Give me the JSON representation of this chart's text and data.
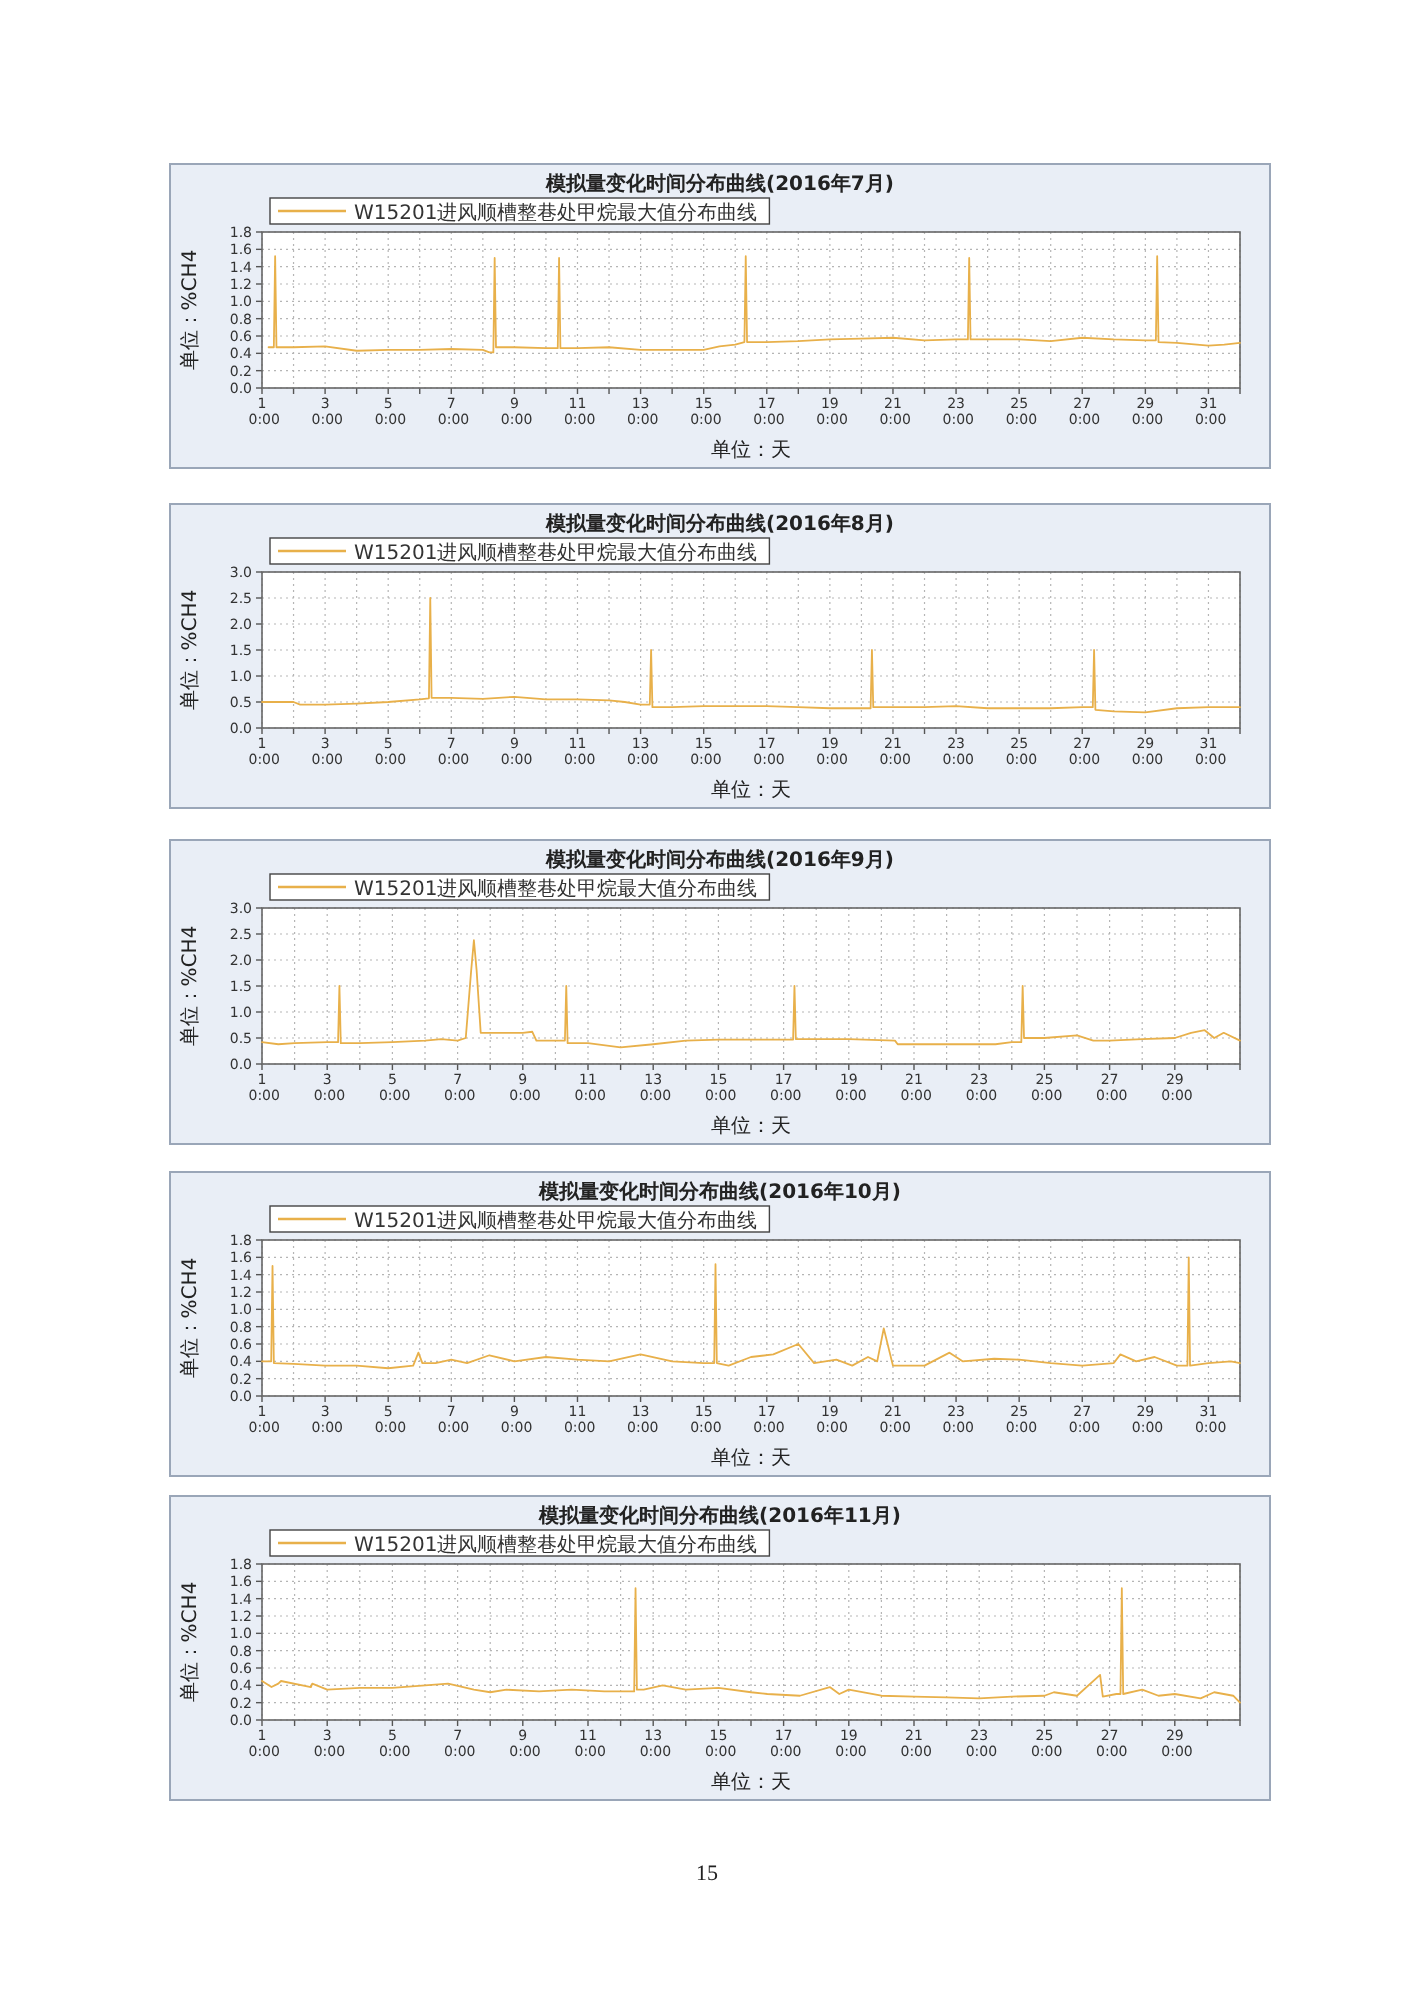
{
  "chart_data": [
    {
      "type": "line",
      "title": "模拟量变化时间分布曲线(2016年7月)",
      "xlabel": "单位：天",
      "ylabel": "单位：%CH4",
      "grid": true,
      "legend": "top",
      "marker": "none",
      "line_style": "solid",
      "xlim": [
        "2016-07-01T00:00",
        "2016-08-01T00:00"
      ],
      "ylim": [
        0,
        1.8
      ],
      "xticks": [
        {
          "value": "2016-07-01T00:00",
          "label": "1 0:00"
        },
        {
          "value": "2016-07-02T00:00",
          "label": null
        },
        {
          "value": "2016-07-03T00:00",
          "label": "3 0:00"
        },
        {
          "value": "2016-07-04T00:00",
          "label": null
        },
        {
          "value": "2016-07-05T00:00",
          "label": "5 0:00"
        },
        {
          "value": "2016-07-06T00:00",
          "label": null
        },
        {
          "value": "2016-07-07T00:00",
          "label": "7 0:00"
        },
        {
          "value": "2016-07-08T00:00",
          "label": null
        },
        {
          "value": "2016-07-09T00:00",
          "label": "9 0:00"
        },
        {
          "value": "2016-07-10T00:00",
          "label": null
        },
        {
          "value": "2016-07-11T00:00",
          "label": "11 0:00"
        },
        {
          "value": "2016-07-12T00:00",
          "label": null
        },
        {
          "value": "2016-07-13T00:00",
          "label": "13 0:00"
        },
        {
          "value": "2016-07-14T00:00",
          "label": null
        },
        {
          "value": "2016-07-15T00:00",
          "label": "15 0:00"
        },
        {
          "value": "2016-07-16T00:00",
          "label": null
        },
        {
          "value": "2016-07-17T00:00",
          "label": "17 0:00"
        },
        {
          "value": "2016-07-18T00:00",
          "label": null
        },
        {
          "value": "2016-07-19T00:00",
          "label": "19 0:00"
        },
        {
          "value": "2016-07-20T00:00",
          "label": null
        },
        {
          "value": "2016-07-21T00:00",
          "label": "21 0:00"
        },
        {
          "value": "2016-07-22T00:00",
          "label": null
        },
        {
          "value": "2016-07-23T00:00",
          "label": "23 0:00"
        },
        {
          "value": "2016-07-24T00:00",
          "label": null
        },
        {
          "value": "2016-07-25T00:00",
          "label": "25 0:00"
        },
        {
          "value": "2016-07-26T00:00",
          "label": null
        },
        {
          "value": "2016-07-27T00:00",
          "label": "27 0:00"
        },
        {
          "value": "2016-07-28T00:00",
          "label": null
        },
        {
          "value": "2016-07-29T00:00",
          "label": "29 0:00"
        },
        {
          "value": "2016-07-30T00:00",
          "label": null
        },
        {
          "value": "2016-07-31T00:00",
          "label": "31 0:00"
        },
        {
          "value": "2016-08-01T00:00",
          "label": null
        }
      ],
      "yticks": [
        {
          "value": 0,
          "label": "0.0"
        },
        {
          "value": 0.2,
          "label": "0.2"
        },
        {
          "value": 0.4,
          "label": "0.4"
        },
        {
          "value": 0.6,
          "label": "0.6"
        },
        {
          "value": 0.8,
          "label": "0.8"
        },
        {
          "value": 1,
          "label": "1.0"
        },
        {
          "value": 1.2,
          "label": "1.2"
        },
        {
          "value": 1.4,
          "label": "1.4"
        },
        {
          "value": 1.6,
          "label": "1.6"
        },
        {
          "value": 1.8,
          "label": "1.8"
        }
      ],
      "series": [
        {
          "name": "W15201进风顺槽整巷处甲烷最大值分布曲线",
          "color": "#e8b04a",
          "x": [
            "2016-07-01T05:00",
            "2016-07-01T09:00",
            "2016-07-01T10:00",
            "2016-07-01T11:00",
            "2016-07-02T00:00",
            "2016-07-03T00:00",
            "2016-07-04T00:00",
            "2016-07-05T00:00",
            "2016-07-06T00:00",
            "2016-07-07T00:00",
            "2016-07-08T00:00",
            "2016-07-08T05:00",
            "2016-07-08T08:00",
            "2016-07-08T09:00",
            "2016-07-08T10:00",
            "2016-07-09T00:00",
            "2016-07-10T00:00",
            "2016-07-10T09:00",
            "2016-07-10T10:00",
            "2016-07-10T11:00",
            "2016-07-11T00:00",
            "2016-07-12T00:00",
            "2016-07-13T00:00",
            "2016-07-14T00:00",
            "2016-07-15T00:00",
            "2016-07-15T12:00",
            "2016-07-16T00:00",
            "2016-07-16T07:00",
            "2016-07-16T08:00",
            "2016-07-16T09:00",
            "2016-07-17T00:00",
            "2016-07-18T00:00",
            "2016-07-19T00:00",
            "2016-07-20T00:00",
            "2016-07-21T00:00",
            "2016-07-22T00:00",
            "2016-07-23T00:00",
            "2016-07-23T09:00",
            "2016-07-23T10:00",
            "2016-07-23T11:00",
            "2016-07-24T00:00",
            "2016-07-25T00:00",
            "2016-07-26T00:00",
            "2016-07-27T00:00",
            "2016-07-28T00:00",
            "2016-07-29T00:00",
            "2016-07-29T08:00",
            "2016-07-29T09:00",
            "2016-07-29T10:00",
            "2016-07-30T00:00",
            "2016-07-31T00:00",
            "2016-07-31T12:00",
            "2016-08-01T00:00"
          ],
          "values": [
            0.47,
            0.47,
            1.52,
            0.47,
            0.47,
            0.48,
            0.43,
            0.44,
            0.44,
            0.45,
            0.44,
            0.41,
            0.41,
            1.5,
            0.47,
            0.47,
            0.46,
            0.46,
            1.5,
            0.46,
            0.46,
            0.47,
            0.44,
            0.44,
            0.44,
            0.48,
            0.5,
            0.53,
            1.52,
            0.53,
            0.53,
            0.54,
            0.56,
            0.57,
            0.58,
            0.55,
            0.56,
            0.56,
            1.5,
            0.56,
            0.56,
            0.56,
            0.54,
            0.58,
            0.56,
            0.55,
            0.55,
            1.52,
            0.53,
            0.52,
            0.49,
            0.5,
            0.52
          ]
        }
      ]
    },
    {
      "type": "line",
      "title": "模拟量变化时间分布曲线(2016年8月)",
      "xlabel": "单位：天",
      "ylabel": "单位：%CH4",
      "grid": true,
      "legend": "top",
      "marker": "none",
      "line_style": "solid",
      "xlim": [
        "2016-08-01T00:00",
        "2016-09-01T00:00"
      ],
      "ylim": [
        0,
        3
      ],
      "xticks": [
        {
          "value": "2016-08-01T00:00",
          "label": "1 0:00"
        },
        {
          "value": "2016-08-02T00:00",
          "label": null
        },
        {
          "value": "2016-08-03T00:00",
          "label": "3 0:00"
        },
        {
          "value": "2016-08-04T00:00",
          "label": null
        },
        {
          "value": "2016-08-05T00:00",
          "label": "5 0:00"
        },
        {
          "value": "2016-08-06T00:00",
          "label": null
        },
        {
          "value": "2016-08-07T00:00",
          "label": "7 0:00"
        },
        {
          "value": "2016-08-08T00:00",
          "label": null
        },
        {
          "value": "2016-08-09T00:00",
          "label": "9 0:00"
        },
        {
          "value": "2016-08-10T00:00",
          "label": null
        },
        {
          "value": "2016-08-11T00:00",
          "label": "11 0:00"
        },
        {
          "value": "2016-08-12T00:00",
          "label": null
        },
        {
          "value": "2016-08-13T00:00",
          "label": "13 0:00"
        },
        {
          "value": "2016-08-14T00:00",
          "label": null
        },
        {
          "value": "2016-08-15T00:00",
          "label": "15 0:00"
        },
        {
          "value": "2016-08-16T00:00",
          "label": null
        },
        {
          "value": "2016-08-17T00:00",
          "label": "17 0:00"
        },
        {
          "value": "2016-08-18T00:00",
          "label": null
        },
        {
          "value": "2016-08-19T00:00",
          "label": "19 0:00"
        },
        {
          "value": "2016-08-20T00:00",
          "label": null
        },
        {
          "value": "2016-08-21T00:00",
          "label": "21 0:00"
        },
        {
          "value": "2016-08-22T00:00",
          "label": null
        },
        {
          "value": "2016-08-23T00:00",
          "label": "23 0:00"
        },
        {
          "value": "2016-08-24T00:00",
          "label": null
        },
        {
          "value": "2016-08-25T00:00",
          "label": "25 0:00"
        },
        {
          "value": "2016-08-26T00:00",
          "label": null
        },
        {
          "value": "2016-08-27T00:00",
          "label": "27 0:00"
        },
        {
          "value": "2016-08-28T00:00",
          "label": null
        },
        {
          "value": "2016-08-29T00:00",
          "label": "29 0:00"
        },
        {
          "value": "2016-08-30T00:00",
          "label": null
        },
        {
          "value": "2016-08-31T00:00",
          "label": "31 0:00"
        },
        {
          "value": "2016-09-01T00:00",
          "label": null
        }
      ],
      "yticks": [
        {
          "value": 0,
          "label": "0.0"
        },
        {
          "value": 0.5,
          "label": "0.5"
        },
        {
          "value": 1,
          "label": "1.0"
        },
        {
          "value": 1.5,
          "label": "1.5"
        },
        {
          "value": 2,
          "label": "2.0"
        },
        {
          "value": 2.5,
          "label": "2.5"
        },
        {
          "value": 3,
          "label": "3.0"
        }
      ],
      "series": [
        {
          "name": "W15201进风顺槽整巷处甲烷最大值分布曲线",
          "color": "#e8b04a",
          "x": [
            "2016-08-01T00:00",
            "2016-08-02T00:00",
            "2016-08-02T05:00",
            "2016-08-03T00:00",
            "2016-08-04T00:00",
            "2016-08-05T00:00",
            "2016-08-06T00:00",
            "2016-08-06T07:00",
            "2016-08-06T08:00",
            "2016-08-06T09:00",
            "2016-08-07T00:00",
            "2016-08-08T00:00",
            "2016-08-08T12:00",
            "2016-08-09T00:00",
            "2016-08-10T00:00",
            "2016-08-11T00:00",
            "2016-08-12T00:00",
            "2016-08-12T12:00",
            "2016-08-13T00:00",
            "2016-08-13T07:00",
            "2016-08-13T08:00",
            "2016-08-13T09:00",
            "2016-08-14T00:00",
            "2016-08-15T00:00",
            "2016-08-16T00:00",
            "2016-08-17T00:00",
            "2016-08-18T00:00",
            "2016-08-19T00:00",
            "2016-08-20T00:00",
            "2016-08-20T07:00",
            "2016-08-20T08:00",
            "2016-08-20T09:00",
            "2016-08-21T00:00",
            "2016-08-22T00:00",
            "2016-08-23T00:00",
            "2016-08-24T00:00",
            "2016-08-25T00:00",
            "2016-08-26T00:00",
            "2016-08-27T00:00",
            "2016-08-27T08:00",
            "2016-08-27T09:00",
            "2016-08-27T10:00",
            "2016-08-28T00:00",
            "2016-08-29T00:00",
            "2016-08-30T00:00",
            "2016-08-31T00:00",
            "2016-09-01T00:00"
          ],
          "values": [
            0.5,
            0.5,
            0.45,
            0.45,
            0.47,
            0.5,
            0.55,
            0.57,
            2.5,
            0.58,
            0.58,
            0.56,
            0.58,
            0.6,
            0.55,
            0.55,
            0.53,
            0.5,
            0.45,
            0.45,
            1.5,
            0.4,
            0.4,
            0.42,
            0.42,
            0.42,
            0.4,
            0.38,
            0.38,
            0.38,
            1.5,
            0.4,
            0.4,
            0.4,
            0.42,
            0.38,
            0.38,
            0.38,
            0.4,
            0.4,
            1.5,
            0.35,
            0.32,
            0.3,
            0.38,
            0.4,
            0.4
          ]
        }
      ]
    },
    {
      "type": "line",
      "title": "模拟量变化时间分布曲线(2016年9月)",
      "xlabel": "单位：天",
      "ylabel": "单位：%CH4",
      "grid": true,
      "legend": "top",
      "marker": "none",
      "line_style": "solid",
      "xlim": [
        "2016-09-01T00:00",
        "2016-10-01T00:00"
      ],
      "ylim": [
        0,
        3
      ],
      "xticks": [
        {
          "value": "2016-09-01T00:00",
          "label": "1 0:00"
        },
        {
          "value": "2016-09-02T00:00",
          "label": null
        },
        {
          "value": "2016-09-03T00:00",
          "label": "3 0:00"
        },
        {
          "value": "2016-09-04T00:00",
          "label": null
        },
        {
          "value": "2016-09-05T00:00",
          "label": "5 0:00"
        },
        {
          "value": "2016-09-06T00:00",
          "label": null
        },
        {
          "value": "2016-09-07T00:00",
          "label": "7 0:00"
        },
        {
          "value": "2016-09-08T00:00",
          "label": null
        },
        {
          "value": "2016-09-09T00:00",
          "label": "9 0:00"
        },
        {
          "value": "2016-09-10T00:00",
          "label": null
        },
        {
          "value": "2016-09-11T00:00",
          "label": "11 0:00"
        },
        {
          "value": "2016-09-12T00:00",
          "label": null
        },
        {
          "value": "2016-09-13T00:00",
          "label": "13 0:00"
        },
        {
          "value": "2016-09-14T00:00",
          "label": null
        },
        {
          "value": "2016-09-15T00:00",
          "label": "15 0:00"
        },
        {
          "value": "2016-09-16T00:00",
          "label": null
        },
        {
          "value": "2016-09-17T00:00",
          "label": "17 0:00"
        },
        {
          "value": "2016-09-18T00:00",
          "label": null
        },
        {
          "value": "2016-09-19T00:00",
          "label": "19 0:00"
        },
        {
          "value": "2016-09-20T00:00",
          "label": null
        },
        {
          "value": "2016-09-21T00:00",
          "label": "21 0:00"
        },
        {
          "value": "2016-09-22T00:00",
          "label": null
        },
        {
          "value": "2016-09-23T00:00",
          "label": "23 0:00"
        },
        {
          "value": "2016-09-24T00:00",
          "label": null
        },
        {
          "value": "2016-09-25T00:00",
          "label": "25 0:00"
        },
        {
          "value": "2016-09-26T00:00",
          "label": null
        },
        {
          "value": "2016-09-27T00:00",
          "label": "27 0:00"
        },
        {
          "value": "2016-09-28T00:00",
          "label": null
        },
        {
          "value": "2016-09-29T00:00",
          "label": "29 0:00"
        },
        {
          "value": "2016-09-30T00:00",
          "label": null
        },
        {
          "value": "2016-10-01T00:00",
          "label": null
        }
      ],
      "yticks": [
        {
          "value": 0,
          "label": "0.0"
        },
        {
          "value": 0.5,
          "label": "0.5"
        },
        {
          "value": 1,
          "label": "1.0"
        },
        {
          "value": 1.5,
          "label": "1.5"
        },
        {
          "value": 2,
          "label": "2.0"
        },
        {
          "value": 2.5,
          "label": "2.5"
        },
        {
          "value": 3,
          "label": "3.0"
        }
      ],
      "series": [
        {
          "name": "W15201进风顺槽整巷处甲烷最大值分布曲线",
          "color": "#e8b04a",
          "x": [
            "2016-09-01T00:00",
            "2016-09-01T12:00",
            "2016-09-02T00:00",
            "2016-09-03T00:00",
            "2016-09-03T08:00",
            "2016-09-03T09:00",
            "2016-09-03T10:00",
            "2016-09-04T00:00",
            "2016-09-05T00:00",
            "2016-09-06T00:00",
            "2016-09-06T12:00",
            "2016-09-07T00:00",
            "2016-09-07T06:00",
            "2016-09-07T10:00",
            "2016-09-07T12:00",
            "2016-09-07T14:00",
            "2016-09-07T17:00",
            "2016-09-08T00:00",
            "2016-09-09T00:00",
            "2016-09-09T07:00",
            "2016-09-09T10:00",
            "2016-09-10T00:00",
            "2016-09-10T07:00",
            "2016-09-10T08:00",
            "2016-09-10T09:00",
            "2016-09-11T00:00",
            "2016-09-12T00:00",
            "2016-09-13T00:00",
            "2016-09-14T00:00",
            "2016-09-15T00:00",
            "2016-09-16T00:00",
            "2016-09-17T00:00",
            "2016-09-17T07:00",
            "2016-09-17T08:00",
            "2016-09-17T09:00",
            "2016-09-18T00:00",
            "2016-09-19T00:00",
            "2016-09-20T10:00",
            "2016-09-20T12:00",
            "2016-09-21T00:00",
            "2016-09-22T00:00",
            "2016-09-23T00:00",
            "2016-09-23T12:00",
            "2016-09-24T00:00",
            "2016-09-24T07:00",
            "2016-09-24T08:00",
            "2016-09-24T09:00",
            "2016-09-25T00:00",
            "2016-09-26T00:00",
            "2016-09-26T12:00",
            "2016-09-27T00:00",
            "2016-09-28T00:00",
            "2016-09-29T00:00",
            "2016-09-29T12:00",
            "2016-09-29T22:00",
            "2016-09-30T05:00",
            "2016-09-30T12:00",
            "2016-10-01T00:00"
          ],
          "values": [
            0.42,
            0.38,
            0.4,
            0.42,
            0.42,
            1.5,
            0.4,
            0.4,
            0.42,
            0.45,
            0.48,
            0.45,
            0.5,
            1.8,
            2.38,
            1.8,
            0.6,
            0.6,
            0.6,
            0.62,
            0.45,
            0.45,
            0.45,
            1.5,
            0.4,
            0.4,
            0.32,
            0.38,
            0.45,
            0.47,
            0.47,
            0.47,
            0.47,
            1.5,
            0.48,
            0.48,
            0.48,
            0.45,
            0.38,
            0.38,
            0.38,
            0.38,
            0.38,
            0.42,
            0.42,
            1.5,
            0.5,
            0.5,
            0.55,
            0.45,
            0.45,
            0.48,
            0.5,
            0.6,
            0.65,
            0.5,
            0.6,
            0.45
          ]
        }
      ]
    },
    {
      "type": "line",
      "title": "模拟量变化时间分布曲线(2016年10月)",
      "xlabel": "单位：天",
      "ylabel": "单位：%CH4",
      "grid": true,
      "legend": "top",
      "marker": "none",
      "line_style": "solid",
      "xlim": [
        "2016-10-01T00:00",
        "2016-11-01T00:00"
      ],
      "ylim": [
        0,
        1.8
      ],
      "xticks": [
        {
          "value": "2016-10-01T00:00",
          "label": "1 0:00"
        },
        {
          "value": "2016-10-02T00:00",
          "label": null
        },
        {
          "value": "2016-10-03T00:00",
          "label": "3 0:00"
        },
        {
          "value": "2016-10-04T00:00",
          "label": null
        },
        {
          "value": "2016-10-05T00:00",
          "label": "5 0:00"
        },
        {
          "value": "2016-10-06T00:00",
          "label": null
        },
        {
          "value": "2016-10-07T00:00",
          "label": "7 0:00"
        },
        {
          "value": "2016-10-08T00:00",
          "label": null
        },
        {
          "value": "2016-10-09T00:00",
          "label": "9 0:00"
        },
        {
          "value": "2016-10-10T00:00",
          "label": null
        },
        {
          "value": "2016-10-11T00:00",
          "label": "11 0:00"
        },
        {
          "value": "2016-10-12T00:00",
          "label": null
        },
        {
          "value": "2016-10-13T00:00",
          "label": "13 0:00"
        },
        {
          "value": "2016-10-14T00:00",
          "label": null
        },
        {
          "value": "2016-10-15T00:00",
          "label": "15 0:00"
        },
        {
          "value": "2016-10-16T00:00",
          "label": null
        },
        {
          "value": "2016-10-17T00:00",
          "label": "17 0:00"
        },
        {
          "value": "2016-10-18T00:00",
          "label": null
        },
        {
          "value": "2016-10-19T00:00",
          "label": "19 0:00"
        },
        {
          "value": "2016-10-20T00:00",
          "label": null
        },
        {
          "value": "2016-10-21T00:00",
          "label": "21 0:00"
        },
        {
          "value": "2016-10-22T00:00",
          "label": null
        },
        {
          "value": "2016-10-23T00:00",
          "label": "23 0:00"
        },
        {
          "value": "2016-10-24T00:00",
          "label": null
        },
        {
          "value": "2016-10-25T00:00",
          "label": "25 0:00"
        },
        {
          "value": "2016-10-26T00:00",
          "label": null
        },
        {
          "value": "2016-10-27T00:00",
          "label": "27 0:00"
        },
        {
          "value": "2016-10-28T00:00",
          "label": null
        },
        {
          "value": "2016-10-29T00:00",
          "label": "29 0:00"
        },
        {
          "value": "2016-10-30T00:00",
          "label": null
        },
        {
          "value": "2016-10-31T00:00",
          "label": "31 0:00"
        },
        {
          "value": "2016-11-01T00:00",
          "label": null
        }
      ],
      "yticks": [
        {
          "value": 0,
          "label": "0.0"
        },
        {
          "value": 0.2,
          "label": "0.2"
        },
        {
          "value": 0.4,
          "label": "0.4"
        },
        {
          "value": 0.6,
          "label": "0.6"
        },
        {
          "value": 0.8,
          "label": "0.8"
        },
        {
          "value": 1,
          "label": "1.0"
        },
        {
          "value": 1.2,
          "label": "1.2"
        },
        {
          "value": 1.4,
          "label": "1.4"
        },
        {
          "value": 1.6,
          "label": "1.6"
        },
        {
          "value": 1.8,
          "label": "1.8"
        }
      ],
      "series": [
        {
          "name": "W15201进风顺槽整巷处甲烷最大值分布曲线",
          "color": "#e8b04a",
          "x": [
            "2016-10-01T00:00",
            "2016-10-01T07:00",
            "2016-10-01T08:00",
            "2016-10-01T09:00",
            "2016-10-02T00:00",
            "2016-10-03T00:00",
            "2016-10-04T00:00",
            "2016-10-05T00:00",
            "2016-10-05T19:00",
            "2016-10-05T23:00",
            "2016-10-06T02:00",
            "2016-10-06T12:00",
            "2016-10-07T00:00",
            "2016-10-07T12:00",
            "2016-10-08T05:00",
            "2016-10-09T00:00",
            "2016-10-10T00:00",
            "2016-10-11T00:00",
            "2016-10-12T00:00",
            "2016-10-13T00:00",
            "2016-10-14T00:00",
            "2016-10-15T00:00",
            "2016-10-15T08:00",
            "2016-10-15T09:00",
            "2016-10-15T10:00",
            "2016-10-15T19:00",
            "2016-10-16T12:00",
            "2016-10-17T05:00",
            "2016-10-18T00:00",
            "2016-10-18T12:00",
            "2016-10-19T05:00",
            "2016-10-19T17:00",
            "2016-10-20T05:00",
            "2016-10-20T12:00",
            "2016-10-20T17:00",
            "2016-10-21T00:00",
            "2016-10-22T00:00",
            "2016-10-22T19:00",
            "2016-10-23T05:00",
            "2016-10-24T05:00",
            "2016-10-25T00:00",
            "2016-10-26T00:00",
            "2016-10-27T00:00",
            "2016-10-28T00:00",
            "2016-10-28T05:00",
            "2016-10-28T17:00",
            "2016-10-29T07:00",
            "2016-10-30T00:00",
            "2016-10-30T08:00",
            "2016-10-30T09:00",
            "2016-10-30T10:00",
            "2016-10-31T00:00",
            "2016-10-31T17:00",
            "2016-11-01T00:00"
          ],
          "values": [
            0.4,
            0.4,
            1.5,
            0.38,
            0.37,
            0.35,
            0.35,
            0.32,
            0.35,
            0.5,
            0.38,
            0.38,
            0.42,
            0.38,
            0.47,
            0.4,
            0.45,
            0.42,
            0.4,
            0.48,
            0.4,
            0.38,
            0.38,
            1.52,
            0.38,
            0.35,
            0.45,
            0.48,
            0.6,
            0.38,
            0.42,
            0.35,
            0.45,
            0.4,
            0.78,
            0.35,
            0.35,
            0.5,
            0.4,
            0.43,
            0.42,
            0.38,
            0.35,
            0.38,
            0.48,
            0.4,
            0.45,
            0.35,
            0.35,
            1.6,
            0.35,
            0.38,
            0.4,
            0.38
          ]
        }
      ]
    },
    {
      "type": "line",
      "title": "模拟量变化时间分布曲线(2016年11月)",
      "xlabel": "单位：天",
      "ylabel": "单位：%CH4",
      "grid": true,
      "legend": "top",
      "marker": "none",
      "line_style": "solid",
      "xlim": [
        "2016-11-01T00:00",
        "2016-12-01T00:00"
      ],
      "ylim": [
        0,
        1.8
      ],
      "annotations": [
        "15"
      ],
      "xticks": [
        {
          "value": "2016-11-01T00:00",
          "label": "1 0:00"
        },
        {
          "value": "2016-11-02T00:00",
          "label": null
        },
        {
          "value": "2016-11-03T00:00",
          "label": "3 0:00"
        },
        {
          "value": "2016-11-04T00:00",
          "label": null
        },
        {
          "value": "2016-11-05T00:00",
          "label": "5 0:00"
        },
        {
          "value": "2016-11-06T00:00",
          "label": null
        },
        {
          "value": "2016-11-07T00:00",
          "label": "7 0:00"
        },
        {
          "value": "2016-11-08T00:00",
          "label": null
        },
        {
          "value": "2016-11-09T00:00",
          "label": "9 0:00"
        },
        {
          "value": "2016-11-10T00:00",
          "label": null
        },
        {
          "value": "2016-11-11T00:00",
          "label": "11 0:00"
        },
        {
          "value": "2016-11-12T00:00",
          "label": null
        },
        {
          "value": "2016-11-13T00:00",
          "label": "13 0:00"
        },
        {
          "value": "2016-11-14T00:00",
          "label": null
        },
        {
          "value": "2016-11-15T00:00",
          "label": "15 0:00"
        },
        {
          "value": "2016-11-16T00:00",
          "label": null
        },
        {
          "value": "2016-11-17T00:00",
          "label": "17 0:00"
        },
        {
          "value": "2016-11-18T00:00",
          "label": null
        },
        {
          "value": "2016-11-19T00:00",
          "label": "19 0:00"
        },
        {
          "value": "2016-11-20T00:00",
          "label": null
        },
        {
          "value": "2016-11-21T00:00",
          "label": "21 0:00"
        },
        {
          "value": "2016-11-22T00:00",
          "label": null
        },
        {
          "value": "2016-11-23T00:00",
          "label": "23 0:00"
        },
        {
          "value": "2016-11-24T00:00",
          "label": null
        },
        {
          "value": "2016-11-25T00:00",
          "label": "25 0:00"
        },
        {
          "value": "2016-11-26T00:00",
          "label": null
        },
        {
          "value": "2016-11-27T00:00",
          "label": "27 0:00"
        },
        {
          "value": "2016-11-28T00:00",
          "label": null
        },
        {
          "value": "2016-11-29T00:00",
          "label": "29 0:00"
        },
        {
          "value": "2016-11-30T00:00",
          "label": null
        },
        {
          "value": "2016-12-01T00:00",
          "label": null
        }
      ],
      "yticks": [
        {
          "value": 0,
          "label": "0.0"
        },
        {
          "value": 0.2,
          "label": "0.2"
        },
        {
          "value": 0.4,
          "label": "0.4"
        },
        {
          "value": 0.6,
          "label": "0.6"
        },
        {
          "value": 0.8,
          "label": "0.8"
        },
        {
          "value": 1,
          "label": "1.0"
        },
        {
          "value": 1.2,
          "label": "1.2"
        },
        {
          "value": 1.4,
          "label": "1.4"
        },
        {
          "value": 1.6,
          "label": "1.6"
        },
        {
          "value": 1.8,
          "label": "1.8"
        }
      ],
      "series": [
        {
          "name": "W15201进风顺槽整巷处甲烷最大值分布曲线",
          "color": "#e8b04a",
          "x": [
            "2016-11-01T00:00",
            "2016-11-01T07:00",
            "2016-11-01T12:00",
            "2016-11-01T14:00",
            "2016-11-02T12:00",
            "2016-11-02T13:00",
            "2016-11-03T00:00",
            "2016-11-04T00:00",
            "2016-11-05T00:00",
            "2016-11-06T17:00",
            "2016-11-07T12:00",
            "2016-11-08T00:00",
            "2016-11-08T12:00",
            "2016-11-09T12:00",
            "2016-11-10T12:00",
            "2016-11-11T12:00",
            "2016-11-12T07:00",
            "2016-11-12T10:00",
            "2016-11-12T11:00",
            "2016-11-12T12:00",
            "2016-11-12T17:00",
            "2016-11-13T07:00",
            "2016-11-14T00:00",
            "2016-11-15T00:00",
            "2016-11-16T00:00",
            "2016-11-16T12:00",
            "2016-11-17T12:00",
            "2016-11-18T10:00",
            "2016-11-18T17:00",
            "2016-11-19T00:00",
            "2016-11-20T00:00",
            "2016-11-21T00:00",
            "2016-11-22T00:00",
            "2016-11-23T00:00",
            "2016-11-24T00:00",
            "2016-11-25T00:00",
            "2016-11-25T07:00",
            "2016-11-26T00:00",
            "2016-11-26T17:00",
            "2016-11-26T19:00",
            "2016-11-27T05:00",
            "2016-11-27T08:00",
            "2016-11-27T09:00",
            "2016-11-27T10:00",
            "2016-11-28T00:00",
            "2016-11-28T12:00",
            "2016-11-29T00:00",
            "2016-11-29T19:00",
            "2016-11-30T05:00",
            "2016-11-30T19:00",
            "2016-12-01T00:00"
          ],
          "values": [
            0.45,
            0.38,
            0.42,
            0.45,
            0.38,
            0.42,
            0.35,
            0.37,
            0.37,
            0.42,
            0.35,
            0.32,
            0.35,
            0.33,
            0.35,
            0.33,
            0.33,
            0.33,
            1.52,
            0.35,
            0.35,
            0.4,
            0.35,
            0.37,
            0.32,
            0.3,
            0.28,
            0.38,
            0.3,
            0.35,
            0.28,
            0.27,
            0.26,
            0.25,
            0.27,
            0.28,
            0.32,
            0.28,
            0.52,
            0.27,
            0.3,
            0.3,
            1.52,
            0.3,
            0.35,
            0.28,
            0.3,
            0.25,
            0.32,
            0.28,
            0.2
          ]
        }
      ]
    }
  ]
}
